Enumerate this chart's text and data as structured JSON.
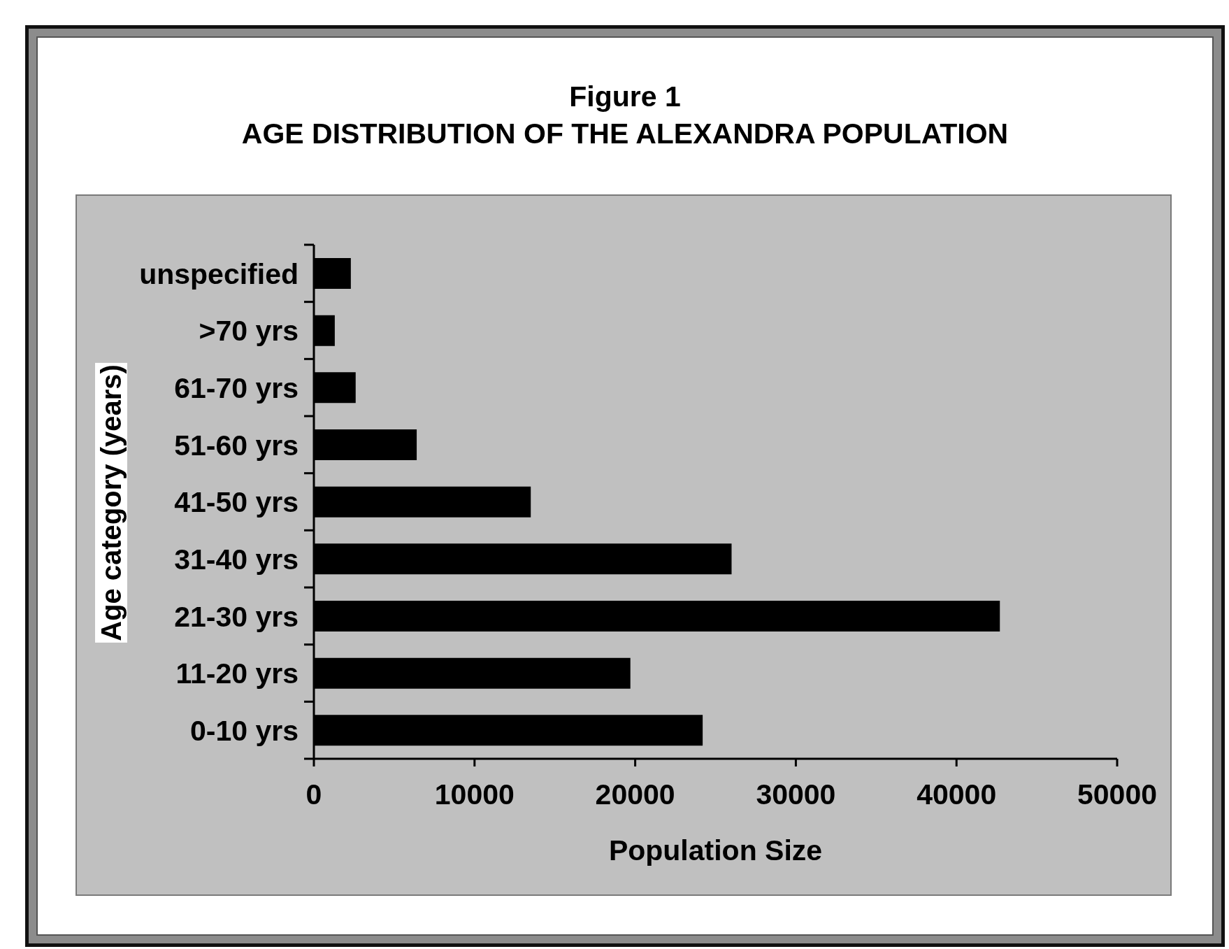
{
  "chart_data": {
    "type": "bar",
    "orientation": "horizontal",
    "title": "Figure 1",
    "subtitle": "AGE DISTRIBUTION OF THE ALEXANDRA POPULATION",
    "xlabel": "Population Size",
    "ylabel": "Age category (years)",
    "categories": [
      "unspecified",
      ">70 yrs",
      "61-70 yrs",
      "51-60 yrs",
      "41-50 yrs",
      "31-40 yrs",
      "21-30 yrs",
      "11-20 yrs",
      "0-10 yrs"
    ],
    "values": [
      2300,
      1300,
      2600,
      6400,
      13500,
      26000,
      42700,
      19700,
      24200
    ],
    "color": "#000000",
    "xlim": [
      0,
      50000
    ],
    "xticks": [
      0,
      10000,
      20000,
      30000,
      40000,
      50000
    ]
  }
}
